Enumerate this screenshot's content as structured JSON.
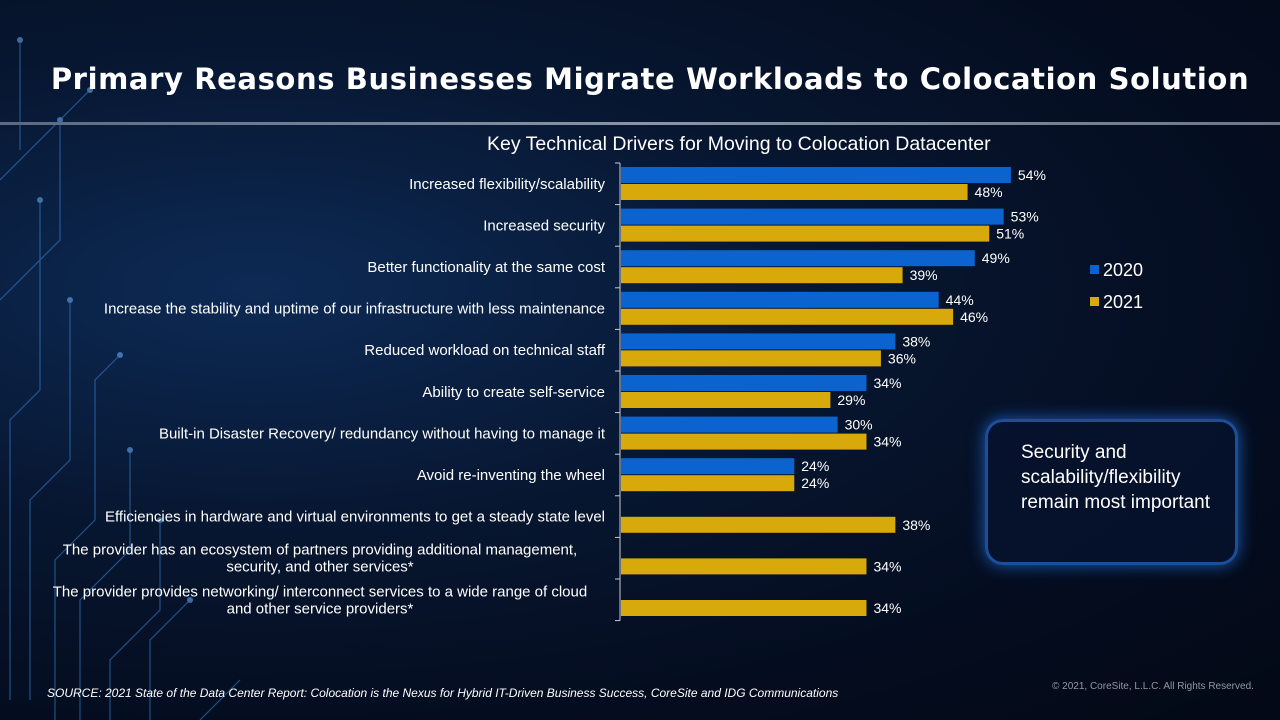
{
  "slide": {
    "title": "Primary Reasons Businesses Migrate Workloads to Colocation Solution",
    "callout": "Security and scalability/flexibility remain most important",
    "source": "SOURCE: 2021 State of the Data Center Report: Colocation is the Nexus for Hybrid IT-Driven  Business Success, CoreSite and IDG Communications",
    "copyright": "© 2021, CoreSite, L.L.C. All Rights Reserved."
  },
  "chart_data": {
    "type": "bar",
    "orientation": "horizontal",
    "title": "Key Technical  Drivers for Moving to Colocation Datacenter",
    "categories": [
      [
        "Increased flexibility/scalability"
      ],
      [
        "Increased security"
      ],
      [
        "Better functionality at the same cost"
      ],
      [
        "Increase the stability and uptime of our infrastructure with less maintenance"
      ],
      [
        "Reduced workload on technical staff"
      ],
      [
        "Ability to create self-service"
      ],
      [
        "Built-in Disaster Recovery/ redundancy without having to manage it"
      ],
      [
        "Avoid re-inventing the wheel"
      ],
      [
        "Efficiencies in hardware and virtual environments to get a steady state level"
      ],
      [
        "The provider has an ecosystem of partners providing additional management,",
        "security, and other services*"
      ],
      [
        "The provider provides networking/ interconnect services to a wide range of cloud",
        "and other service providers*"
      ]
    ],
    "series": [
      {
        "name": "2020",
        "color": "#0b63cf",
        "values": [
          54,
          53,
          49,
          44,
          38,
          34,
          30,
          24,
          null,
          null,
          null
        ]
      },
      {
        "name": "2021",
        "color": "#d8a90a",
        "values": [
          48,
          51,
          39,
          46,
          36,
          29,
          34,
          24,
          38,
          34,
          34
        ]
      }
    ],
    "value_format": "percent",
    "data_labels": true,
    "grid": false,
    "legend": "right"
  }
}
